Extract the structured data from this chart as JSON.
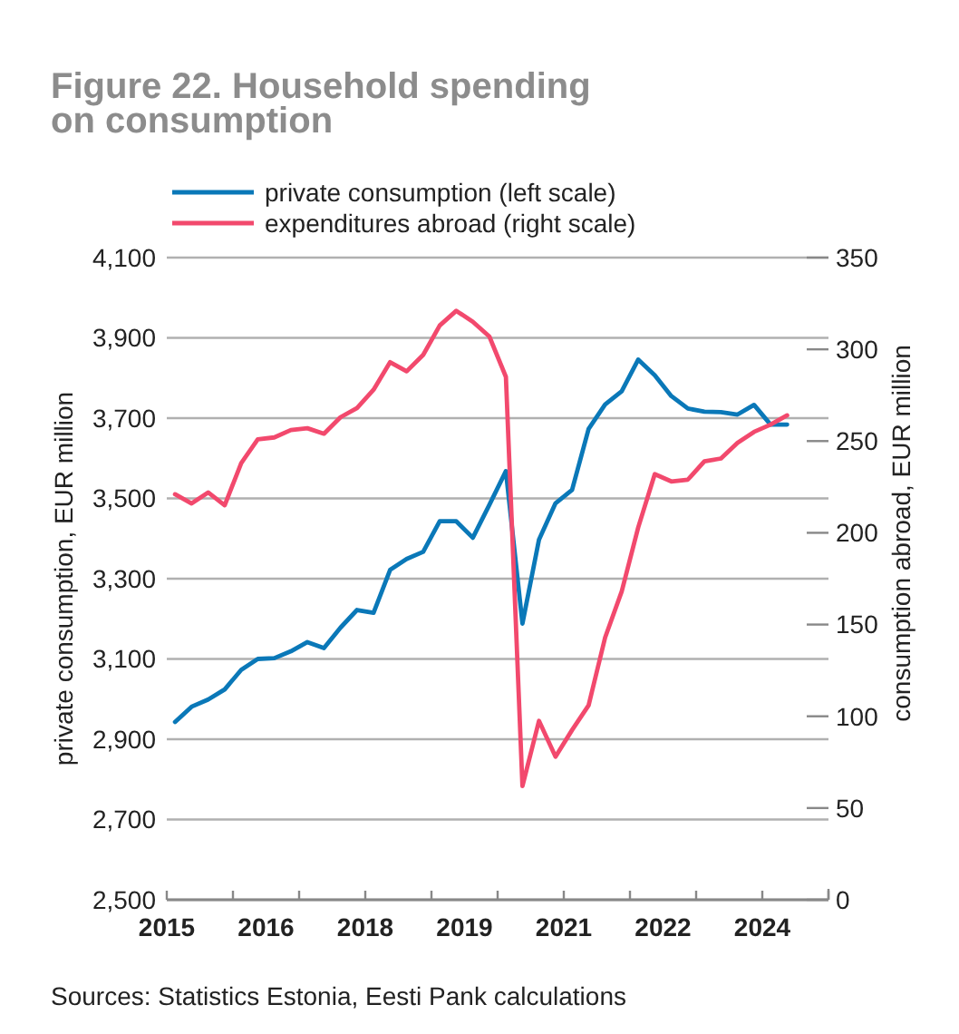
{
  "chart_data": {
    "type": "line",
    "title": "Figure 22. Household spending\non consumption",
    "ylabel": "private consumption, EUR million",
    "y2label": "consumption abroad, EUR million",
    "annotations": [
      "Sources: Statistics Estonia, Eesti Pank calculations"
    ],
    "x": [
      2015.125,
      2015.375,
      2015.625,
      2015.875,
      2016.125,
      2016.375,
      2016.625,
      2016.875,
      2017.125,
      2017.375,
      2017.625,
      2017.875,
      2018.125,
      2018.375,
      2018.625,
      2018.875,
      2019.125,
      2019.375,
      2019.625,
      2019.875,
      2020.125,
      2020.375,
      2020.625,
      2020.875,
      2021.125,
      2021.375,
      2021.625,
      2021.875,
      2022.125,
      2022.375,
      2022.625,
      2022.875,
      2023.125,
      2023.375,
      2023.625,
      2023.875,
      2024.125,
      2024.375
    ],
    "xlim": [
      2015,
      2025
    ],
    "xticks": [
      {
        "value": 2015,
        "label": "2015"
      },
      {
        "value": 2016,
        "label": null
      },
      {
        "value": 2016.5,
        "label": "2016"
      },
      {
        "value": 2017,
        "label": null
      },
      {
        "value": 2018,
        "label": "2018"
      },
      {
        "value": 2019,
        "label": null
      },
      {
        "value": 2019.5,
        "label": "2019"
      },
      {
        "value": 2020,
        "label": null
      },
      {
        "value": 2021,
        "label": "2021"
      },
      {
        "value": 2022,
        "label": null
      },
      {
        "value": 2022.5,
        "label": "2022"
      },
      {
        "value": 2023,
        "label": null
      },
      {
        "value": 2024,
        "label": "2024"
      },
      {
        "value": 2025,
        "label": null
      }
    ],
    "ylim": [
      2500,
      4100
    ],
    "yticks": [
      {
        "value": 2500,
        "label": "2,500"
      },
      {
        "value": 2700,
        "label": "2,700"
      },
      {
        "value": 2900,
        "label": "2,900"
      },
      {
        "value": 3100,
        "label": "3,100"
      },
      {
        "value": 3300,
        "label": "3,300"
      },
      {
        "value": 3500,
        "label": "3,500"
      },
      {
        "value": 3700,
        "label": "3,700"
      },
      {
        "value": 3900,
        "label": "3,900"
      },
      {
        "value": 4100,
        "label": "4,100"
      }
    ],
    "y2lim": [
      0,
      350
    ],
    "y2ticks": [
      0,
      50,
      100,
      150,
      200,
      250,
      300,
      350
    ],
    "grid": "y",
    "legend": "top",
    "line_style": "solid",
    "marker": "none",
    "series": [
      {
        "name": "private consumption (left scale)",
        "color": "#0a78b8",
        "values": [
          2943,
          2981,
          2999,
          3024,
          3073,
          3100,
          3102,
          3119,
          3142,
          3127,
          3178,
          3222,
          3215,
          3322,
          3349,
          3367,
          3443,
          3443,
          3402,
          3484,
          3568,
          3188,
          3397,
          3488,
          3521,
          3673,
          3734,
          3767,
          3846,
          3807,
          3755,
          3724,
          3716,
          3715,
          3709,
          3733,
          3684,
          3684
        ]
      },
      {
        "name": "expenditures abroad (right scale)",
        "color": "#f2496d",
        "axis": "y2",
        "values": [
          221,
          216,
          222,
          215,
          238,
          251,
          252,
          256,
          257,
          254,
          263,
          268,
          278,
          293,
          288,
          297,
          313,
          321,
          315,
          307,
          285,
          62,
          97.5,
          78,
          92.5,
          106,
          143,
          168,
          203,
          232,
          228,
          229,
          239,
          240.5,
          249,
          255,
          259,
          264
        ]
      }
    ]
  }
}
